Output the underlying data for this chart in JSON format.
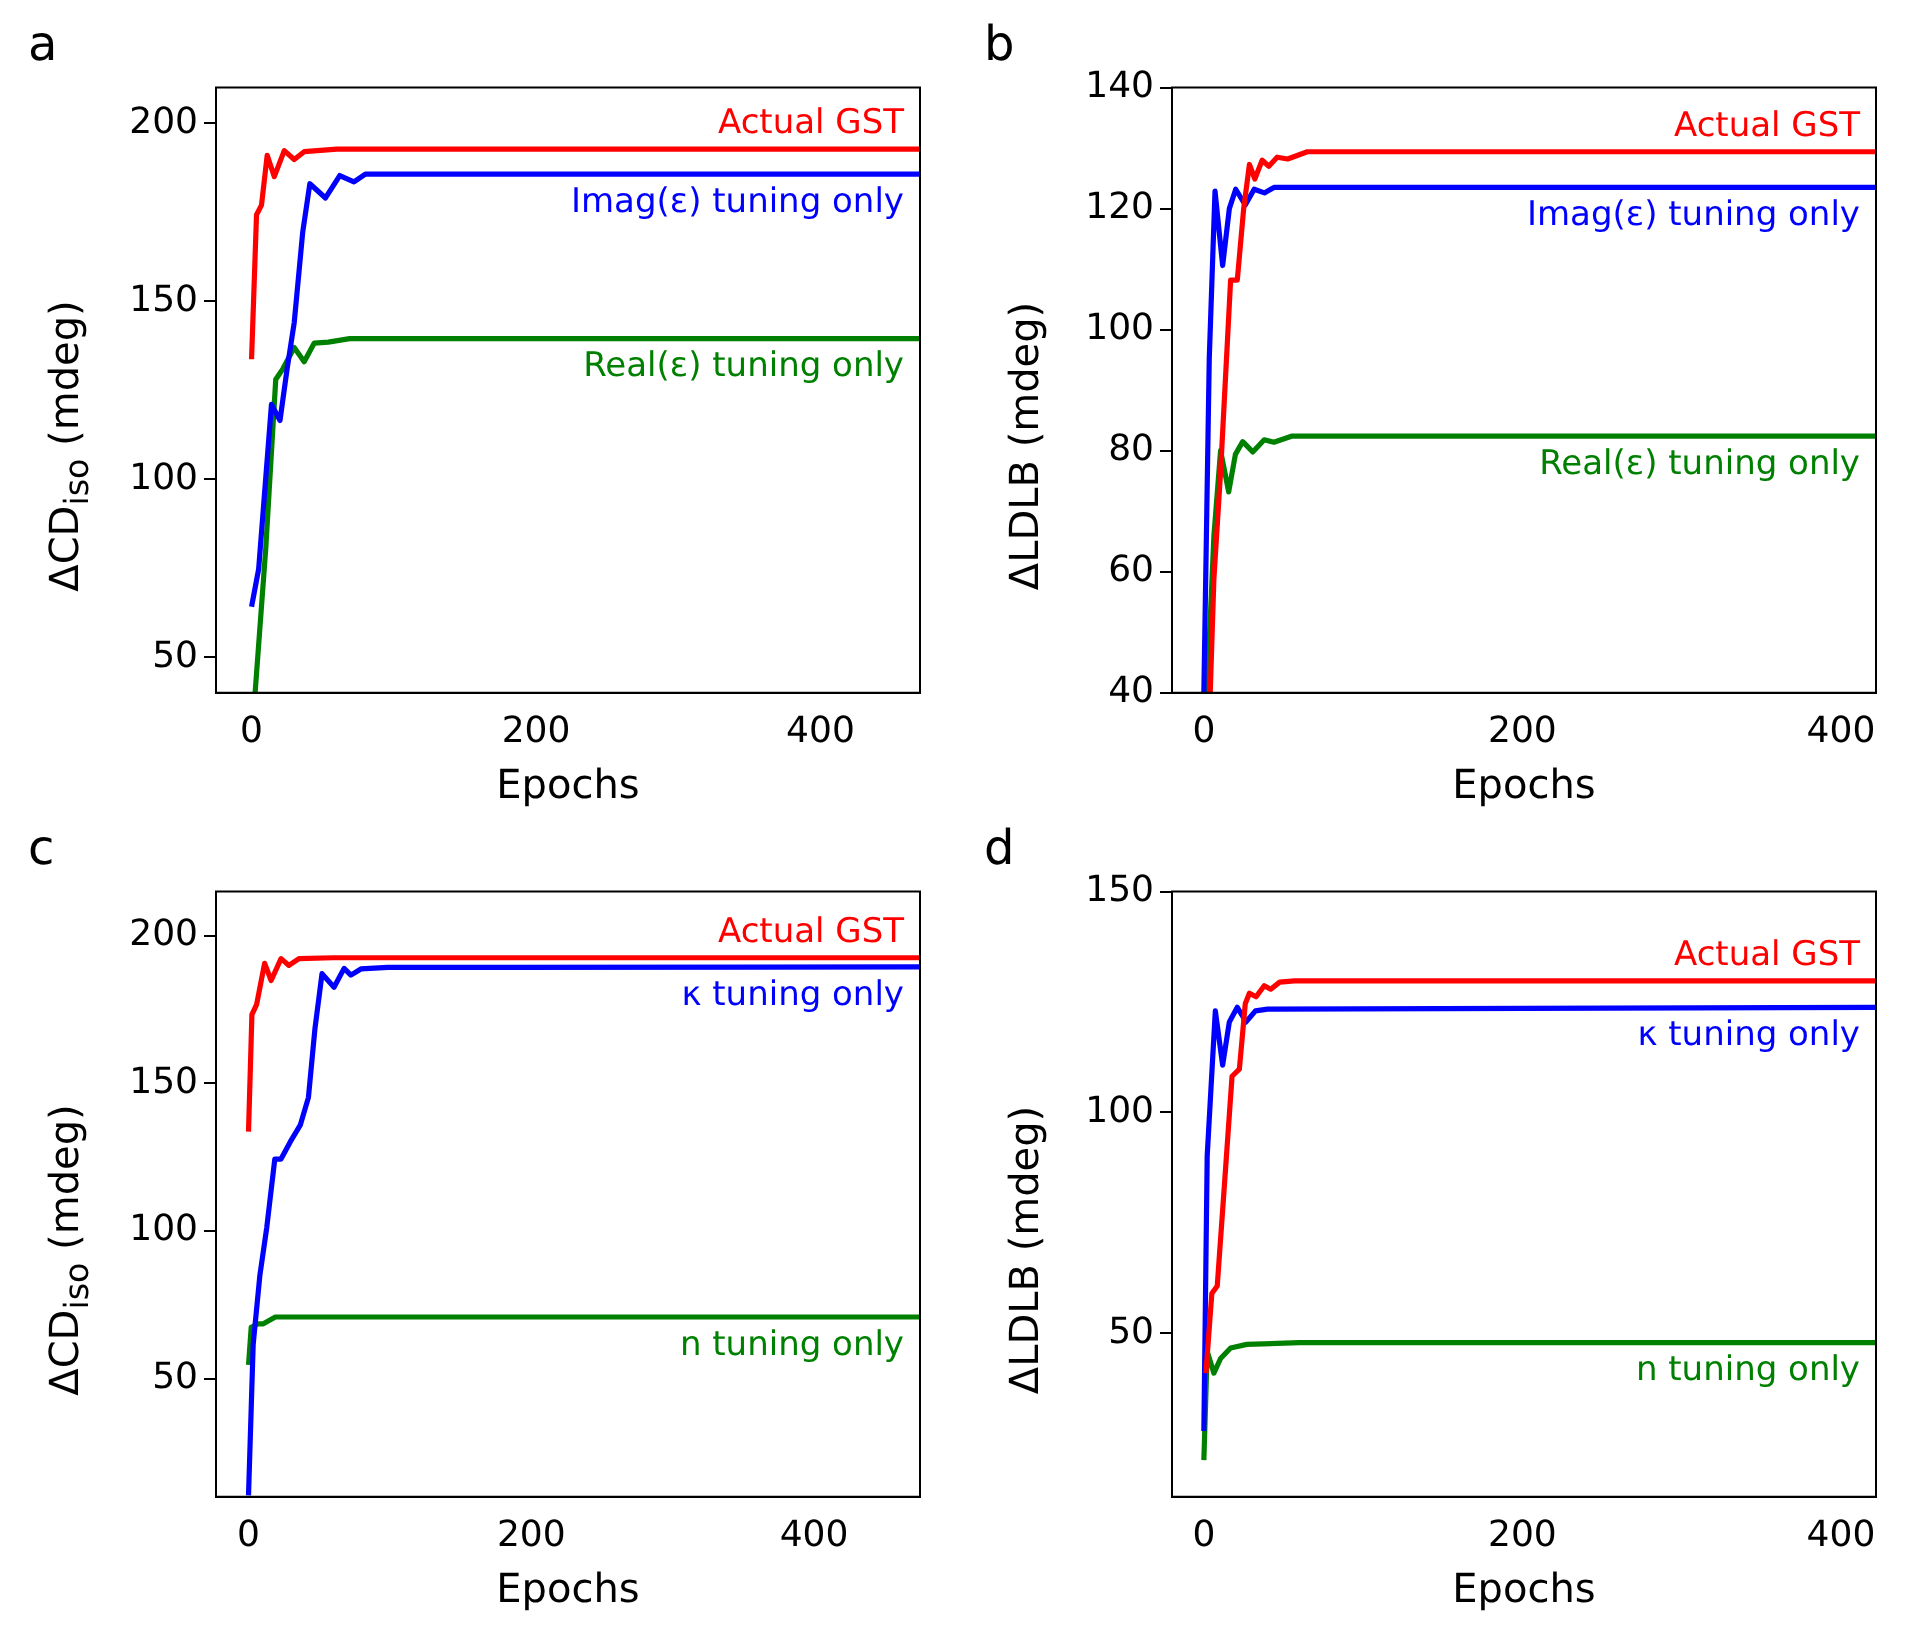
{
  "chart_data": [
    {
      "type": "line",
      "title": "a",
      "xlabel": "Epochs",
      "ylabel": "ΔCD$_{iso}$ (mdeg)",
      "xlim": [
        -25,
        470
      ],
      "xticks": [
        0,
        200,
        400
      ],
      "ylim": [
        40,
        210
      ],
      "yticks": [
        50,
        100,
        150,
        200
      ],
      "grid": false,
      "legend": false,
      "marker": "none",
      "line_style": "solid",
      "series": [
        {
          "name": "Actual GST",
          "color": "#ff0000",
          "x": [
            0,
            3.5,
            7,
            11,
            16,
            23,
            30,
            37,
            60,
            470
          ],
          "values": [
            133.7,
            174.3,
            177,
            191,
            185,
            192.3,
            189.8,
            192,
            192.7,
            192.7
          ]
        },
        {
          "name": "Imag(ε) tuning only",
          "color": "#0000ff",
          "x": [
            0,
            5,
            14,
            20,
            25,
            30,
            36,
            41,
            52,
            62,
            72,
            80,
            470
          ],
          "values": [
            64.2,
            74.8,
            121,
            116.5,
            131,
            144,
            169.5,
            183,
            179,
            185.3,
            183.5,
            185.7,
            185.7
          ]
        },
        {
          "name": "Real(ε) tuning only",
          "color": "#008000",
          "x": [
            2.5,
            10,
            17,
            22,
            30,
            37,
            44,
            54,
            69,
            470
          ],
          "values": [
            40,
            80.6,
            128,
            131,
            137,
            133,
            138.2,
            138.5,
            139.5,
            139.5
          ]
        }
      ]
    },
    {
      "type": "line",
      "title": "b",
      "xlabel": "Epochs",
      "ylabel": "ΔLDLB (mdeg)",
      "xlim": [
        -20,
        422
      ],
      "xticks": [
        0,
        200,
        400
      ],
      "ylim": [
        40,
        140
      ],
      "yticks": [
        40,
        60,
        80,
        100,
        120,
        140
      ],
      "grid": false,
      "legend": false,
      "marker": "none",
      "line_style": "solid",
      "series": [
        {
          "name": "Actual GST",
          "color": "#ff0000",
          "x": [
            4,
            6.3,
            10.5,
            16.8,
            21,
            25,
            28.6,
            32,
            36.6,
            40.8,
            46,
            52.6,
            65,
            422
          ],
          "values": [
            40,
            58.8,
            76.5,
            108.2,
            108.2,
            120,
            127.3,
            124.9,
            128,
            127,
            128.5,
            128.2,
            129.4,
            129.4
          ]
        },
        {
          "name": "Imag(ε) tuning only",
          "color": "#0000ff",
          "x": [
            0,
            3.4,
            7,
            11.8,
            16,
            20,
            26,
            31.6,
            38,
            44,
            422
          ],
          "values": [
            40,
            95.3,
            122.9,
            110.6,
            120,
            123.2,
            120.6,
            123.2,
            122.6,
            123.5,
            123.5
          ]
        },
        {
          "name": "Real(ε) tuning only",
          "color": "#008000",
          "x": [
            2,
            6.3,
            10.5,
            15.6,
            19.8,
            24.4,
            30.7,
            37.9,
            44,
            55,
            422
          ],
          "values": [
            40,
            65.9,
            80,
            73.2,
            79.4,
            81.5,
            79.8,
            81.8,
            81.4,
            82.4,
            82.4
          ]
        }
      ]
    },
    {
      "type": "line",
      "title": "c",
      "xlabel": "Epochs",
      "ylabel": "ΔCD$_{iso}$ (mdeg)",
      "xlim": [
        -23,
        475
      ],
      "xticks": [
        0,
        200,
        400
      ],
      "ylim": [
        10,
        215
      ],
      "yticks": [
        50,
        100,
        150,
        200
      ],
      "grid": false,
      "legend": false,
      "marker": "none",
      "line_style": "solid",
      "series": [
        {
          "name": "Actual GST",
          "color": "#ff0000",
          "x": [
            0,
            2.4,
            5.7,
            11.4,
            16,
            23,
            28.6,
            35.7,
            60,
            475
          ],
          "values": [
            133.7,
            173.3,
            176.7,
            190.7,
            184.9,
            192.3,
            190,
            192.3,
            192.6,
            192.6
          ]
        },
        {
          "name": "κ tuning only",
          "color": "#0000ff",
          "x": [
            0,
            3.3,
            8,
            12.9,
            18.6,
            23,
            29.5,
            36.7,
            42.4,
            47,
            52,
            60.5,
            67.6,
            72.4,
            79.5,
            98.6,
            475
          ],
          "values": [
            10.5,
            61.6,
            84.9,
            101.2,
            124.4,
            124.4,
            130.2,
            136,
            145.3,
            168.6,
            187.2,
            182.6,
            189,
            186.7,
            188.8,
            189.3,
            189.5
          ]
        },
        {
          "name": "n tuning only",
          "color": "#008000",
          "x": [
            0,
            1.9,
            6.7,
            10.5,
            19,
            475
          ],
          "values": [
            54.7,
            67.4,
            68.6,
            68.6,
            70.9,
            70.9
          ]
        }
      ]
    },
    {
      "type": "line",
      "title": "d",
      "xlabel": "Epochs",
      "ylabel": "ΔLDLB (mdeg)",
      "xlim": [
        -20,
        422
      ],
      "xticks": [
        0,
        200,
        400
      ],
      "ylim": [
        13,
        150
      ],
      "yticks": [
        50,
        100,
        150
      ],
      "grid": false,
      "legend": false,
      "marker": "none",
      "line_style": "solid",
      "series": [
        {
          "name": "Actual GST",
          "color": "#ff0000",
          "x": [
            1.3,
            5,
            8.4,
            12.6,
            17.7,
            22.3,
            26,
            28.6,
            32.8,
            37.9,
            42,
            47.6,
            56.8,
            422
          ],
          "values": [
            41,
            59,
            60.7,
            82,
            108.2,
            109.8,
            124.6,
            127,
            126.2,
            128.7,
            127.9,
            129.5,
            129.8,
            129.8
          ]
        },
        {
          "name": "κ tuning only",
          "color": "#0000ff",
          "x": [
            0,
            2.1,
            7.2,
            11.8,
            16,
            21,
            26.5,
            32.4,
            40,
            422
          ],
          "values": [
            27.9,
            90.2,
            123,
            110.7,
            120.5,
            123.8,
            120.5,
            123,
            123.4,
            123.8
          ]
        },
        {
          "name": "n tuning only",
          "color": "#008000",
          "x": [
            0,
            2.1,
            6.3,
            10.5,
            16.8,
            27,
            60,
            422
          ],
          "values": [
            21.3,
            45.9,
            41,
            44.3,
            46.7,
            47.5,
            47.9,
            47.9
          ]
        }
      ]
    }
  ]
}
